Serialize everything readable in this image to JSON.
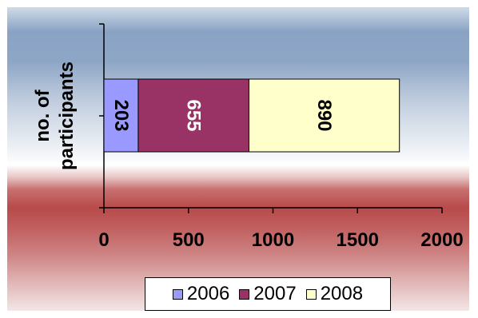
{
  "chart_data": {
    "type": "bar",
    "orientation": "horizontal",
    "stacked": true,
    "categories": [
      ""
    ],
    "series": [
      {
        "name": "2006",
        "values": [
          203
        ],
        "color": "#9999ff"
      },
      {
        "name": "2007",
        "values": [
          655
        ],
        "color": "#993366"
      },
      {
        "name": "2008",
        "values": [
          890
        ],
        "color": "#ffffcc"
      }
    ],
    "ylabel_lines": [
      "no. of",
      "participants"
    ],
    "xlim": [
      0,
      2000
    ],
    "xticks": [
      0,
      500,
      1000,
      1500,
      2000
    ],
    "grid": false,
    "legend_position": "bottom",
    "data_labels": true
  }
}
